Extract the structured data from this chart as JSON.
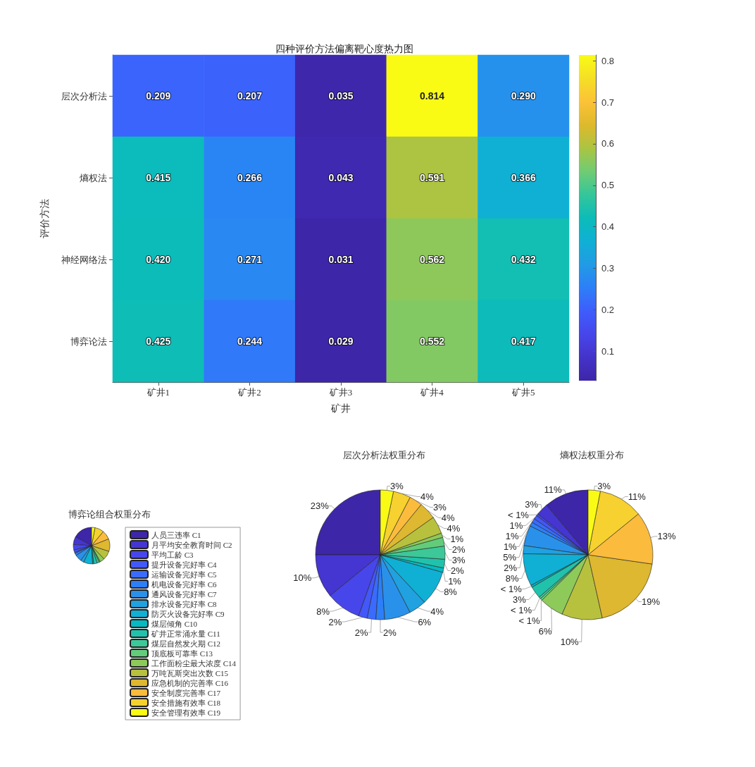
{
  "chart_data": [
    {
      "type": "heatmap",
      "title": "四种评价方法偏离靶心度热力图",
      "xlabel": "矿井",
      "ylabel": "评价方法",
      "categories": [
        "矿井1",
        "矿井2",
        "矿井3",
        "矿井4",
        "矿井5"
      ],
      "y_categories": [
        "层次分析法",
        "熵权法",
        "神经网络法",
        "博弈论法"
      ],
      "cells": [
        [
          0.209,
          0.207,
          0.035,
          0.814,
          0.29
        ],
        [
          0.415,
          0.266,
          0.043,
          0.591,
          0.366
        ],
        [
          0.42,
          0.271,
          0.031,
          0.562,
          0.432
        ],
        [
          0.425,
          0.244,
          0.029,
          0.552,
          0.417
        ]
      ],
      "cell_labels": [
        [
          "0.209",
          "0.207",
          "0.035",
          "0.814",
          "0.290"
        ],
        [
          "0.415",
          "0.266",
          "0.043",
          "0.591",
          "0.366"
        ],
        [
          "0.420",
          "0.271",
          "0.031",
          "0.562",
          "0.432"
        ],
        [
          "0.425",
          "0.244",
          "0.029",
          "0.552",
          "0.417"
        ]
      ],
      "clim": [
        0.029,
        0.814
      ],
      "cticks": [
        0.1,
        0.2,
        0.3,
        0.4,
        0.5,
        0.6,
        0.7,
        0.8
      ]
    },
    {
      "type": "pie",
      "title": "博弈论组合权重分布",
      "legend": "right",
      "categories": [
        "人员三违率 C1",
        "月平均安全教育时间 C2",
        "平均工龄 C3",
        "提升设备完好率 C4",
        "运输设备完好率 C5",
        "机电设备完好率 C6",
        "通风设备完好率 C7",
        "排水设备完好率 C8",
        "防灭火设备完好率 C9",
        "煤层倾角 C10",
        "矿井正常涌水量 C11",
        "煤层自然发火期 C12",
        "顶底板可靠率 C13",
        "工作面粉尘最大浓度 C14",
        "万吨瓦斯突出次数 C15",
        "应急机制的完善率 C16",
        "安全制度完善率 C17",
        "安全措施有效率 C18",
        "安全管理有效率 C19"
      ],
      "values": [
        17,
        7,
        5,
        2,
        1,
        2,
        6,
        3,
        8,
        1,
        3,
        2,
        1,
        4,
        8,
        11,
        8,
        8,
        3
      ],
      "colors": [
        "#3e26a8",
        "#4535d1",
        "#4746eb",
        "#4358f9",
        "#3a6bfe",
        "#2d7ff8",
        "#2a91ea",
        "#20a1e0",
        "#0fb0d4",
        "#05bac0",
        "#21c2ab",
        "#3cc898",
        "#62cc7a",
        "#8dca5a",
        "#b8c13e",
        "#ddb830",
        "#fbbb3d",
        "#f6d12f",
        "#f9fb15"
      ]
    },
    {
      "type": "pie",
      "title": "层次分析法权重分布",
      "categories": [
        null,
        null,
        null,
        null,
        null,
        null,
        null,
        null,
        null,
        null,
        null,
        null,
        null,
        null,
        null,
        null,
        null,
        null,
        null
      ],
      "values": [
        23,
        10,
        8,
        2,
        2,
        2,
        6,
        4,
        8,
        1,
        2,
        3,
        2,
        1,
        4,
        4,
        3,
        4,
        3
      ],
      "value_labels": [
        "23%",
        "10%",
        "8%",
        "2%",
        "2%",
        "2%",
        "6%",
        "4%",
        "8%",
        "1%",
        "2%",
        "3%",
        "2%",
        "1%",
        "4%",
        "4%",
        "3%",
        "4%",
        "3%"
      ],
      "colors": [
        "#3e26a8",
        "#4535d1",
        "#4746eb",
        "#4358f9",
        "#3a6bfe",
        "#2d7ff8",
        "#2a91ea",
        "#20a1e0",
        "#0fb0d4",
        "#05bac0",
        "#21c2ab",
        "#3cc898",
        "#62cc7a",
        "#8dca5a",
        "#b8c13e",
        "#ddb830",
        "#fbbb3d",
        "#f6d12f",
        "#f9fb15"
      ]
    },
    {
      "type": "pie",
      "title": "熵权法权重分布",
      "categories": [
        null,
        null,
        null,
        null,
        null,
        null,
        null,
        null,
        null,
        null,
        null,
        null,
        null,
        null,
        null,
        null,
        null,
        null,
        null
      ],
      "values": [
        11,
        3,
        0.5,
        1,
        1,
        1,
        5,
        2,
        8,
        0.5,
        3,
        0.5,
        0.5,
        6,
        10,
        19,
        13,
        11,
        3
      ],
      "value_labels": [
        "11%",
        "3%",
        "< 1%",
        "1%",
        "1%",
        "1%",
        "5%",
        "2%",
        "8%",
        "< 1%",
        "3%",
        "< 1%",
        "< 1%",
        "6%",
        "10%",
        "19%",
        "13%",
        "11%",
        "3%"
      ],
      "colors": [
        "#3e26a8",
        "#4535d1",
        "#4746eb",
        "#4358f9",
        "#3a6bfe",
        "#2d7ff8",
        "#2a91ea",
        "#20a1e0",
        "#0fb0d4",
        "#05bac0",
        "#21c2ab",
        "#3cc898",
        "#62cc7a",
        "#8dca5a",
        "#b8c13e",
        "#ddb830",
        "#fbbb3d",
        "#f6d12f",
        "#f9fb15"
      ]
    }
  ]
}
